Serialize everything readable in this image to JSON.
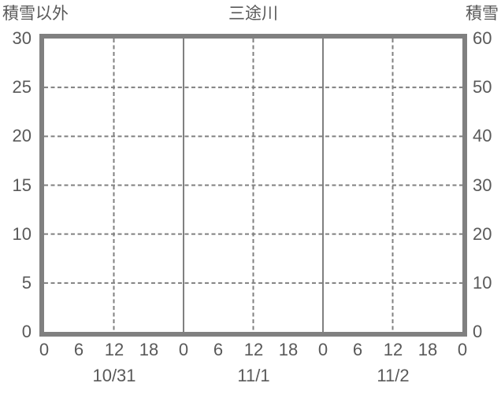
{
  "header": {
    "left_axis_title": "積雪以外",
    "chart_title": "三途川",
    "right_axis_title": "積雪"
  },
  "chart_data": {
    "type": "line",
    "title": "三途川",
    "series": [],
    "grid": true,
    "x_axis": {
      "hours_total": 72,
      "hour_tick_step": 6,
      "hour_tick_labels": [
        "0",
        "6",
        "12",
        "18",
        "0",
        "6",
        "12",
        "18",
        "0",
        "6",
        "12",
        "18",
        "0"
      ],
      "date_labels": [
        {
          "label": "10/31",
          "hour": 12
        },
        {
          "label": "11/1",
          "hour": 36
        },
        {
          "label": "11/2",
          "hour": 60
        }
      ],
      "solid_gridline_hours": [
        24,
        48
      ],
      "dashed_gridline_hours": [
        12,
        36,
        60
      ]
    },
    "y_axis_left": {
      "label": "積雪以外",
      "min": 0,
      "max": 30,
      "ticks": [
        0,
        5,
        10,
        15,
        20,
        25,
        30
      ],
      "dashed_gridline_values": [
        5,
        10,
        15,
        20,
        25
      ]
    },
    "y_axis_right": {
      "label": "積雪",
      "min": 0,
      "max": 60,
      "ticks": [
        0,
        10,
        20,
        30,
        40,
        50,
        60
      ]
    },
    "colors": {
      "frame": "#808080",
      "grid": "#808080",
      "text": "#595959",
      "background": "#ffffff"
    }
  }
}
